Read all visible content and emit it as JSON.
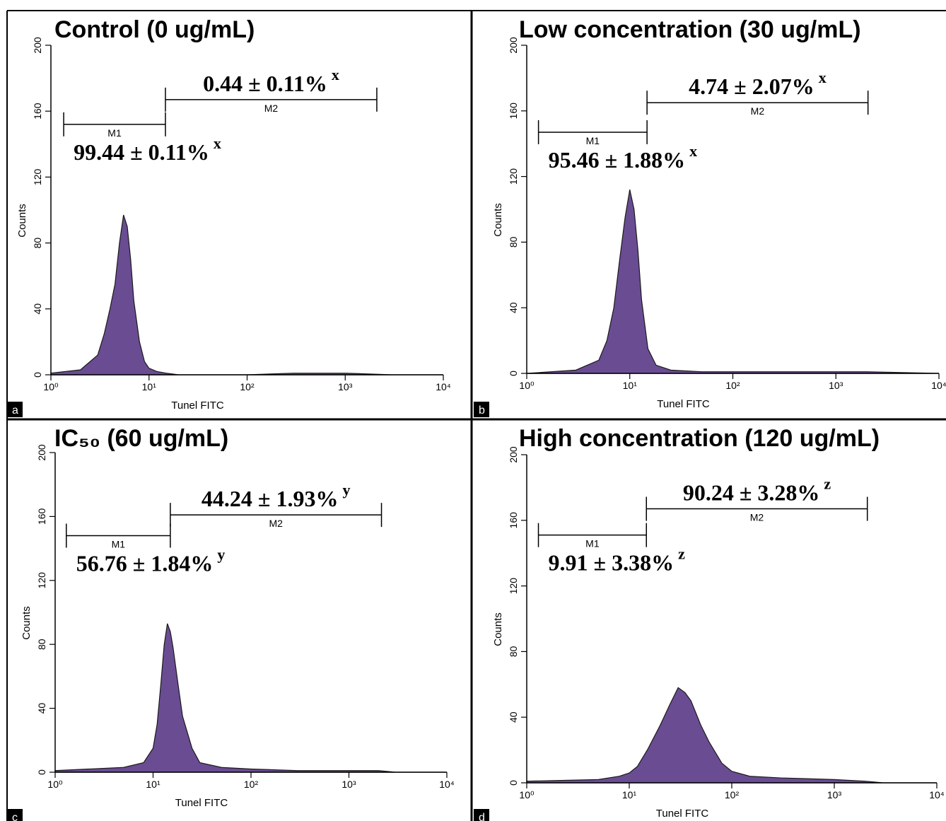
{
  "chart_data": [
    {
      "type": "area",
      "panel": "a",
      "title": "Control (0 ug/mL)",
      "xlabel": "Tunel FITC",
      "ylabel": "Counts",
      "color": "#6a4c93",
      "log_x": true,
      "x": [
        1,
        2,
        3,
        3.5,
        4,
        4.5,
        5,
        5.5,
        6,
        6.5,
        7,
        8,
        9,
        10,
        12,
        15,
        20,
        50,
        100,
        300,
        1000,
        3000,
        10000
      ],
      "values": [
        1,
        3,
        12,
        25,
        40,
        55,
        80,
        97,
        90,
        70,
        45,
        20,
        8,
        4,
        2,
        1,
        0,
        0,
        0,
        1,
        1,
        0,
        0
      ],
      "xlim": [
        1,
        10000
      ],
      "ylim": [
        0,
        200
      ],
      "yticks": [
        0,
        40,
        80,
        120,
        160,
        200
      ],
      "xticks": [
        {
          "value": 1,
          "label": "10⁰"
        },
        {
          "value": 10,
          "label": "10¹"
        },
        {
          "value": 100,
          "label": "10²"
        },
        {
          "value": 1000,
          "label": "10³"
        },
        {
          "value": 10000,
          "label": "10⁴"
        }
      ],
      "gates": [
        {
          "name": "M1",
          "x": [
            1.35,
            14.7
          ],
          "y": 152,
          "label": "99.44 ± 0.11%",
          "sup": "x"
        },
        {
          "name": "M2",
          "x": [
            14.7,
            2100
          ],
          "y": 167,
          "label": "0.44 ± 0.11%",
          "sup": "x"
        }
      ]
    },
    {
      "type": "area",
      "panel": "b",
      "title": "Low concentration (30 ug/mL)",
      "xlabel": "Tunel FITC",
      "ylabel": "Counts",
      "color": "#6a4c93",
      "log_x": true,
      "x": [
        1,
        3,
        5,
        6,
        7,
        8,
        9,
        10,
        11,
        12,
        13,
        15,
        18,
        25,
        50,
        100,
        300,
        1000,
        2000,
        10000
      ],
      "values": [
        0,
        2,
        8,
        20,
        40,
        70,
        95,
        112,
        100,
        75,
        45,
        15,
        5,
        2,
        1,
        1,
        1,
        1,
        1,
        0
      ],
      "xlim": [
        1,
        10000
      ],
      "ylim": [
        0,
        200
      ],
      "yticks": [
        0,
        40,
        80,
        120,
        160,
        200
      ],
      "xticks": [
        {
          "value": 1,
          "label": "10⁰"
        },
        {
          "value": 10,
          "label": "10¹"
        },
        {
          "value": 100,
          "label": "10²"
        },
        {
          "value": 1000,
          "label": "10³"
        },
        {
          "value": 10000,
          "label": "10⁴"
        }
      ],
      "gates": [
        {
          "name": "M1",
          "x": [
            1.3,
            14.7
          ],
          "y": 147,
          "label": "95.46 ± 1.88%",
          "sup": "x"
        },
        {
          "name": "M2",
          "x": [
            14.7,
            2050
          ],
          "y": 165,
          "label": "4.74 ± 2.07%",
          "sup": "x"
        }
      ]
    },
    {
      "type": "area",
      "panel": "c",
      "title": "IC₅₀ (60 ug/mL)",
      "xlabel": "Tunel FITC",
      "ylabel": "Counts",
      "color": "#6a4c93",
      "log_x": true,
      "x": [
        1,
        5,
        8,
        10,
        11,
        12,
        13,
        14,
        15,
        16,
        18,
        20,
        25,
        30,
        50,
        100,
        300,
        1000,
        2000,
        3000,
        10000
      ],
      "values": [
        1,
        3,
        6,
        15,
        30,
        55,
        80,
        93,
        88,
        78,
        55,
        35,
        15,
        6,
        3,
        2,
        1,
        1,
        1,
        0,
        0
      ],
      "xlim": [
        1,
        10000
      ],
      "ylim": [
        0,
        200
      ],
      "yticks": [
        0,
        40,
        80,
        120,
        160,
        200
      ],
      "xticks": [
        {
          "value": 1,
          "label": "10⁰"
        },
        {
          "value": 10,
          "label": "10¹"
        },
        {
          "value": 100,
          "label": "10²"
        },
        {
          "value": 1000,
          "label": "10³"
        },
        {
          "value": 10000,
          "label": "10⁴"
        }
      ],
      "gates": [
        {
          "name": "M1",
          "x": [
            1.3,
            15
          ],
          "y": 148,
          "label": "56.76 ± 1.84%",
          "sup": "y"
        },
        {
          "name": "M2",
          "x": [
            15,
            2150
          ],
          "y": 161,
          "label": "44.24 ± 1.93%",
          "sup": "y"
        }
      ]
    },
    {
      "type": "area",
      "panel": "d",
      "title": "High concentration (120 ug/mL)",
      "xlabel": "Tunel FITC",
      "ylabel": "Counts",
      "color": "#6a4c93",
      "log_x": true,
      "x": [
        1,
        5,
        8,
        10,
        12,
        15,
        20,
        25,
        30,
        35,
        40,
        50,
        60,
        80,
        100,
        150,
        300,
        1000,
        2000,
        3000,
        10000
      ],
      "values": [
        1,
        2,
        4,
        6,
        10,
        20,
        35,
        48,
        58,
        55,
        50,
        35,
        25,
        12,
        7,
        4,
        3,
        2,
        1,
        0,
        0
      ],
      "xlim": [
        1,
        10000
      ],
      "ylim": [
        0,
        200
      ],
      "yticks": [
        0,
        40,
        80,
        120,
        160,
        200
      ],
      "xticks": [
        {
          "value": 1,
          "label": "10⁰"
        },
        {
          "value": 10,
          "label": "10¹"
        },
        {
          "value": 100,
          "label": "10²"
        },
        {
          "value": 1000,
          "label": "10³"
        },
        {
          "value": 10000,
          "label": "10⁴"
        }
      ],
      "gates": [
        {
          "name": "M1",
          "x": [
            1.3,
            14.7
          ],
          "y": 151,
          "label": "9.91 ± 3.38%",
          "sup": "z"
        },
        {
          "name": "M2",
          "x": [
            14.7,
            2100
          ],
          "y": 167,
          "label": "90.24 ± 3.28%",
          "sup": "z"
        }
      ]
    }
  ]
}
